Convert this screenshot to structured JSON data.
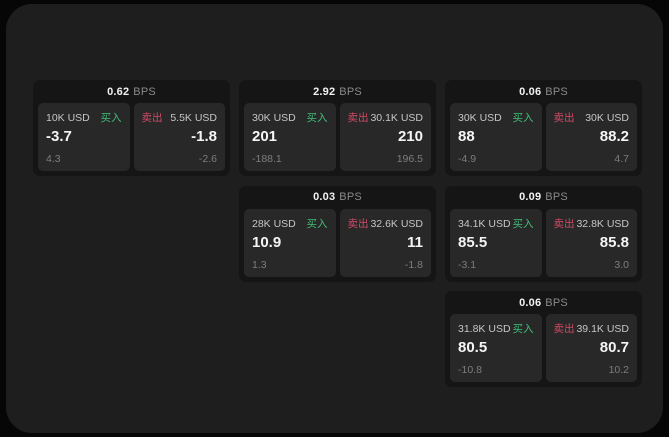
{
  "colors": {
    "buy_green": "#3fbf77",
    "sell_red": "#cf4b66",
    "surface": "#1e1e1e",
    "card": "#151515",
    "pane": "#282828"
  },
  "cards": [
    {
      "bps_value": "0.62",
      "bps_unit": "BPS",
      "buy": {
        "size": "10K USD",
        "side": "买入",
        "price": "-3.7",
        "delta": "4.3"
      },
      "sell": {
        "side": "卖出",
        "size": "5.5K USD",
        "price": "-1.8",
        "delta": "-2.6"
      }
    },
    {
      "bps_value": "2.92",
      "bps_unit": "BPS",
      "buy": {
        "size": "30K USD",
        "side": "买入",
        "price": "201",
        "delta": "-188.1"
      },
      "sell": {
        "side": "卖出",
        "size": "30.1K USD",
        "price": "210",
        "delta": "196.5"
      }
    },
    {
      "bps_value": "0.06",
      "bps_unit": "BPS",
      "buy": {
        "size": "30K USD",
        "side": "买入",
        "price": "88",
        "delta": "-4.9"
      },
      "sell": {
        "side": "卖出",
        "size": "30K USD",
        "price": "88.2",
        "delta": "4.7"
      }
    },
    {
      "bps_value": "0.03",
      "bps_unit": "BPS",
      "buy": {
        "size": "28K USD",
        "side": "买入",
        "price": "10.9",
        "delta": "1.3"
      },
      "sell": {
        "side": "卖出",
        "size": "32.6K USD",
        "price": "11",
        "delta": "-1.8"
      }
    },
    {
      "bps_value": "0.09",
      "bps_unit": "BPS",
      "buy": {
        "size": "34.1K USD",
        "side": "买入",
        "price": "85.5",
        "delta": "-3.1"
      },
      "sell": {
        "side": "卖出",
        "size": "32.8K USD",
        "price": "85.8",
        "delta": "3.0"
      }
    },
    {
      "bps_value": "0.06",
      "bps_unit": "BPS",
      "buy": {
        "size": "31.8K USD",
        "side": "买入",
        "price": "80.5",
        "delta": "-10.8"
      },
      "sell": {
        "side": "卖出",
        "size": "39.1K USD",
        "price": "80.7",
        "delta": "10.2"
      }
    }
  ]
}
